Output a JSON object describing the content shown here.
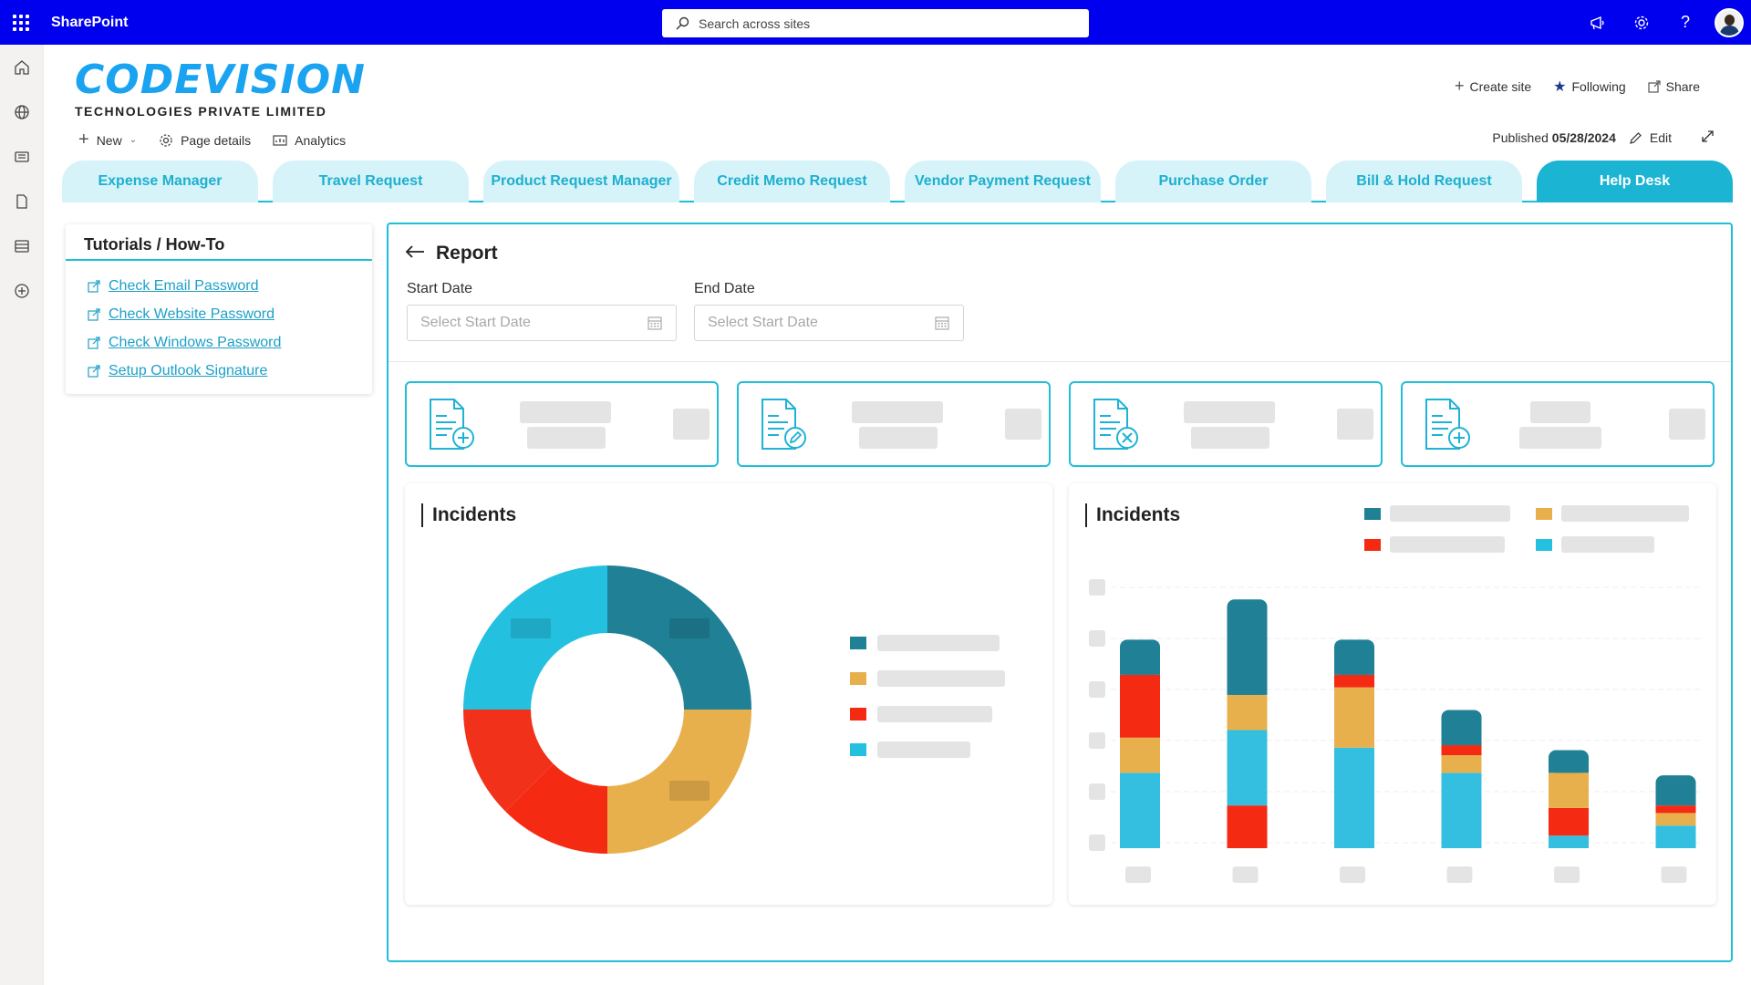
{
  "suite": {
    "app_name": "SharePoint",
    "search_placeholder": "Search across sites"
  },
  "header": {
    "logo_main": "CODEVISION",
    "logo_sub": "TECHNOLOGIES PRIVATE LIMITED",
    "site_actions": {
      "create_site": "Create site",
      "following": "Following",
      "share": "Share"
    },
    "commands": {
      "new": "New",
      "page_details": "Page details",
      "analytics": "Analytics"
    },
    "published_label": "Published",
    "published_date": "05/28/2024",
    "edit": "Edit"
  },
  "tabs": [
    {
      "label": "Expense Manager"
    },
    {
      "label": "Travel Request"
    },
    {
      "label": "Product Request Manager"
    },
    {
      "label": "Credit Memo Request"
    },
    {
      "label": "Vendor Payment Request"
    },
    {
      "label": "Purchase Order"
    },
    {
      "label": "Bill & Hold Request"
    },
    {
      "label": "Help Desk"
    }
  ],
  "active_tab": "Help Desk",
  "tutorials": {
    "title": "Tutorials / How-To",
    "links": [
      {
        "label": "Check Email Password"
      },
      {
        "label": "Check Website Password"
      },
      {
        "label": "Check Windows Password"
      },
      {
        "label": "Setup Outlook Signature"
      }
    ]
  },
  "report": {
    "title": "Report",
    "start_date_label": "Start Date",
    "end_date_label": "End Date",
    "start_placeholder": "Select Start Date",
    "end_placeholder": "Select Start Date"
  },
  "cards": [
    {
      "icon": "document-add-icon"
    },
    {
      "icon": "document-edit-icon"
    },
    {
      "icon": "document-cancel-icon"
    },
    {
      "icon": "document-add-icon"
    }
  ],
  "colors": {
    "suite_bar": "#0000ee",
    "accent": "#1fbfd8",
    "teal": "#1f8096",
    "amber": "#e8b04c",
    "red": "#f52a12",
    "cyan": "#24c0e0"
  },
  "chart_data": [
    {
      "type": "pie",
      "title": "Incidents",
      "donut": true,
      "slices": [
        {
          "color": "#1f8096",
          "value": 25
        },
        {
          "color": "#e8b04c",
          "value": 25
        },
        {
          "color": "#f52a12",
          "value": 12.5
        },
        {
          "color": "#f2311a",
          "value": 12.5
        },
        {
          "color": "#24c0e0",
          "value": 25
        }
      ],
      "legend_colors": [
        "#1f8096",
        "#e8b04c",
        "#f52a12",
        "#24c0e0"
      ]
    },
    {
      "type": "bar",
      "stacked": true,
      "title": "Incidents",
      "ylim": [
        0,
        100
      ],
      "legend_colors": [
        "#1f8096",
        "#e8b04c",
        "#f52a12",
        "#24c0e0"
      ],
      "stack_order": [
        "cyan",
        "amber",
        "red",
        "teal"
      ],
      "bars": [
        {
          "cyan": 30,
          "amber": 14,
          "red": 25,
          "teal": 14
        },
        {
          "cyan": 0,
          "red": 17,
          "cyan2": 30,
          "amber": 14,
          "teal": 38
        },
        {
          "cyan": 40,
          "amber": 24,
          "red": 5,
          "teal": 14
        },
        {
          "cyan": 30,
          "amber": 7,
          "red": 4,
          "teal": 14
        },
        {
          "cyan": 5,
          "red": 11,
          "amber": 14,
          "teal": 9
        },
        {
          "cyan": 9,
          "amber": 5,
          "red": 3,
          "teal": 12
        }
      ]
    }
  ]
}
